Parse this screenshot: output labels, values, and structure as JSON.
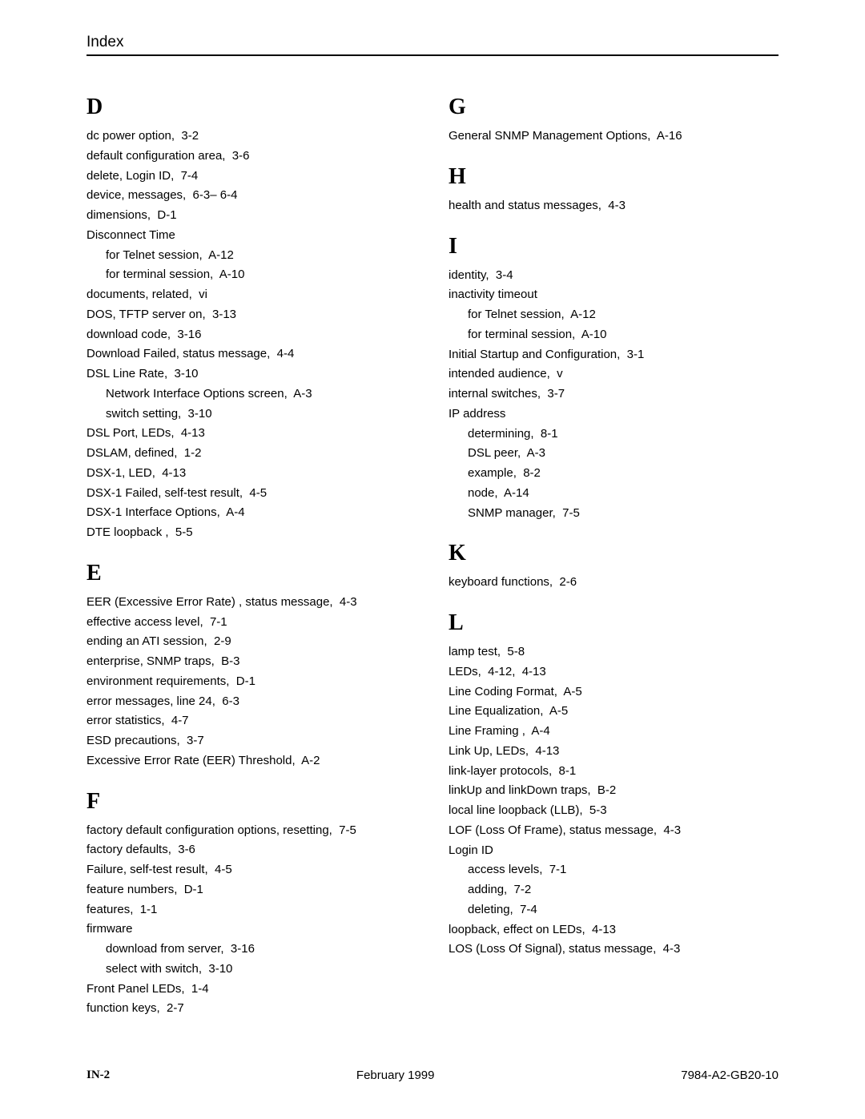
{
  "header": "Index",
  "footer": {
    "left": "IN-2",
    "center": "February 1999",
    "right": "7984-A2-GB20-10"
  },
  "leftSections": [
    {
      "letter": "D",
      "entries": [
        {
          "t": "dc power option,  3-2"
        },
        {
          "t": "default configuration area,  3-6"
        },
        {
          "t": "delete, Login ID,  7-4"
        },
        {
          "t": "device, messages,  6-3– 6-4"
        },
        {
          "t": "dimensions,  D-1"
        },
        {
          "t": "Disconnect Time"
        },
        {
          "t": "for Telnet session,  A-12",
          "sub": true
        },
        {
          "t": "for terminal session,  A-10",
          "sub": true
        },
        {
          "t": "documents, related,  vi"
        },
        {
          "t": "DOS, TFTP server on,  3-13"
        },
        {
          "t": "download code,  3-16"
        },
        {
          "t": "Download Failed, status message,  4-4"
        },
        {
          "t": "DSL Line Rate,  3-10"
        },
        {
          "t": "Network Interface Options screen,  A-3",
          "sub": true
        },
        {
          "t": "switch setting,  3-10",
          "sub": true
        },
        {
          "t": "DSL Port, LEDs,  4-13"
        },
        {
          "t": "DSLAM, defined,  1-2"
        },
        {
          "t": "DSX-1, LED,  4-13"
        },
        {
          "t": "DSX-1 Failed, self-test result,  4-5"
        },
        {
          "t": "DSX-1 Interface Options,  A-4"
        },
        {
          "t": "DTE loopback ,  5-5"
        }
      ]
    },
    {
      "letter": "E",
      "entries": [
        {
          "t": "EER (Excessive Error Rate) , status message,  4-3"
        },
        {
          "t": "effective access level,  7-1"
        },
        {
          "t": "ending an ATI session,  2-9"
        },
        {
          "t": "enterprise, SNMP traps,  B-3"
        },
        {
          "t": "environment requirements,  D-1"
        },
        {
          "t": "error messages, line 24,  6-3"
        },
        {
          "t": "error statistics,  4-7"
        },
        {
          "t": "ESD precautions,  3-7"
        },
        {
          "t": "Excessive Error Rate (EER) Threshold,  A-2"
        }
      ]
    },
    {
      "letter": "F",
      "entries": [
        {
          "t": "factory default configuration options, resetting,  7-5"
        },
        {
          "t": "factory defaults,  3-6"
        },
        {
          "t": "Failure, self-test result,  4-5"
        },
        {
          "t": "feature numbers,  D-1"
        },
        {
          "t": "features,  1-1"
        },
        {
          "t": "firmware"
        },
        {
          "t": "download from server,  3-16",
          "sub": true
        },
        {
          "t": "select with switch,  3-10",
          "sub": true
        },
        {
          "t": "Front Panel LEDs,  1-4"
        },
        {
          "t": "function keys,  2-7"
        }
      ]
    }
  ],
  "rightSections": [
    {
      "letter": "G",
      "entries": [
        {
          "t": "General SNMP Management Options,  A-16"
        }
      ]
    },
    {
      "letter": "H",
      "entries": [
        {
          "t": "health and status messages,  4-3"
        }
      ]
    },
    {
      "letter": "I",
      "entries": [
        {
          "t": "identity,  3-4"
        },
        {
          "t": "inactivity timeout"
        },
        {
          "t": "for Telnet session,  A-12",
          "sub": true
        },
        {
          "t": "for terminal session,  A-10",
          "sub": true
        },
        {
          "t": "Initial Startup and Configuration,  3-1"
        },
        {
          "t": "intended audience,  v"
        },
        {
          "t": "internal switches,  3-7"
        },
        {
          "t": "IP address"
        },
        {
          "t": "determining,  8-1",
          "sub": true
        },
        {
          "t": "DSL peer,  A-3",
          "sub": true
        },
        {
          "t": "example,  8-2",
          "sub": true
        },
        {
          "t": "node,  A-14",
          "sub": true
        },
        {
          "t": "SNMP manager,  7-5",
          "sub": true
        }
      ]
    },
    {
      "letter": "K",
      "entries": [
        {
          "t": "keyboard functions,  2-6"
        }
      ]
    },
    {
      "letter": "L",
      "entries": [
        {
          "t": "lamp test,  5-8"
        },
        {
          "t": "LEDs,  4-12,  4-13"
        },
        {
          "t": "Line Coding Format,  A-5"
        },
        {
          "t": "Line Equalization,  A-5"
        },
        {
          "t": "Line Framing ,  A-4"
        },
        {
          "t": "Link Up, LEDs,  4-13"
        },
        {
          "t": "link-layer protocols,  8-1"
        },
        {
          "t": "linkUp and linkDown traps,  B-2"
        },
        {
          "t": "local line loopback (LLB),  5-3"
        },
        {
          "t": "LOF (Loss Of Frame), status message,  4-3"
        },
        {
          "t": "Login ID"
        },
        {
          "t": "access levels,  7-1",
          "sub": true
        },
        {
          "t": "adding,  7-2",
          "sub": true
        },
        {
          "t": "deleting,  7-4",
          "sub": true
        },
        {
          "t": "loopback, effect on LEDs,  4-13"
        },
        {
          "t": "LOS (Loss Of Signal), status message,  4-3"
        }
      ]
    }
  ]
}
